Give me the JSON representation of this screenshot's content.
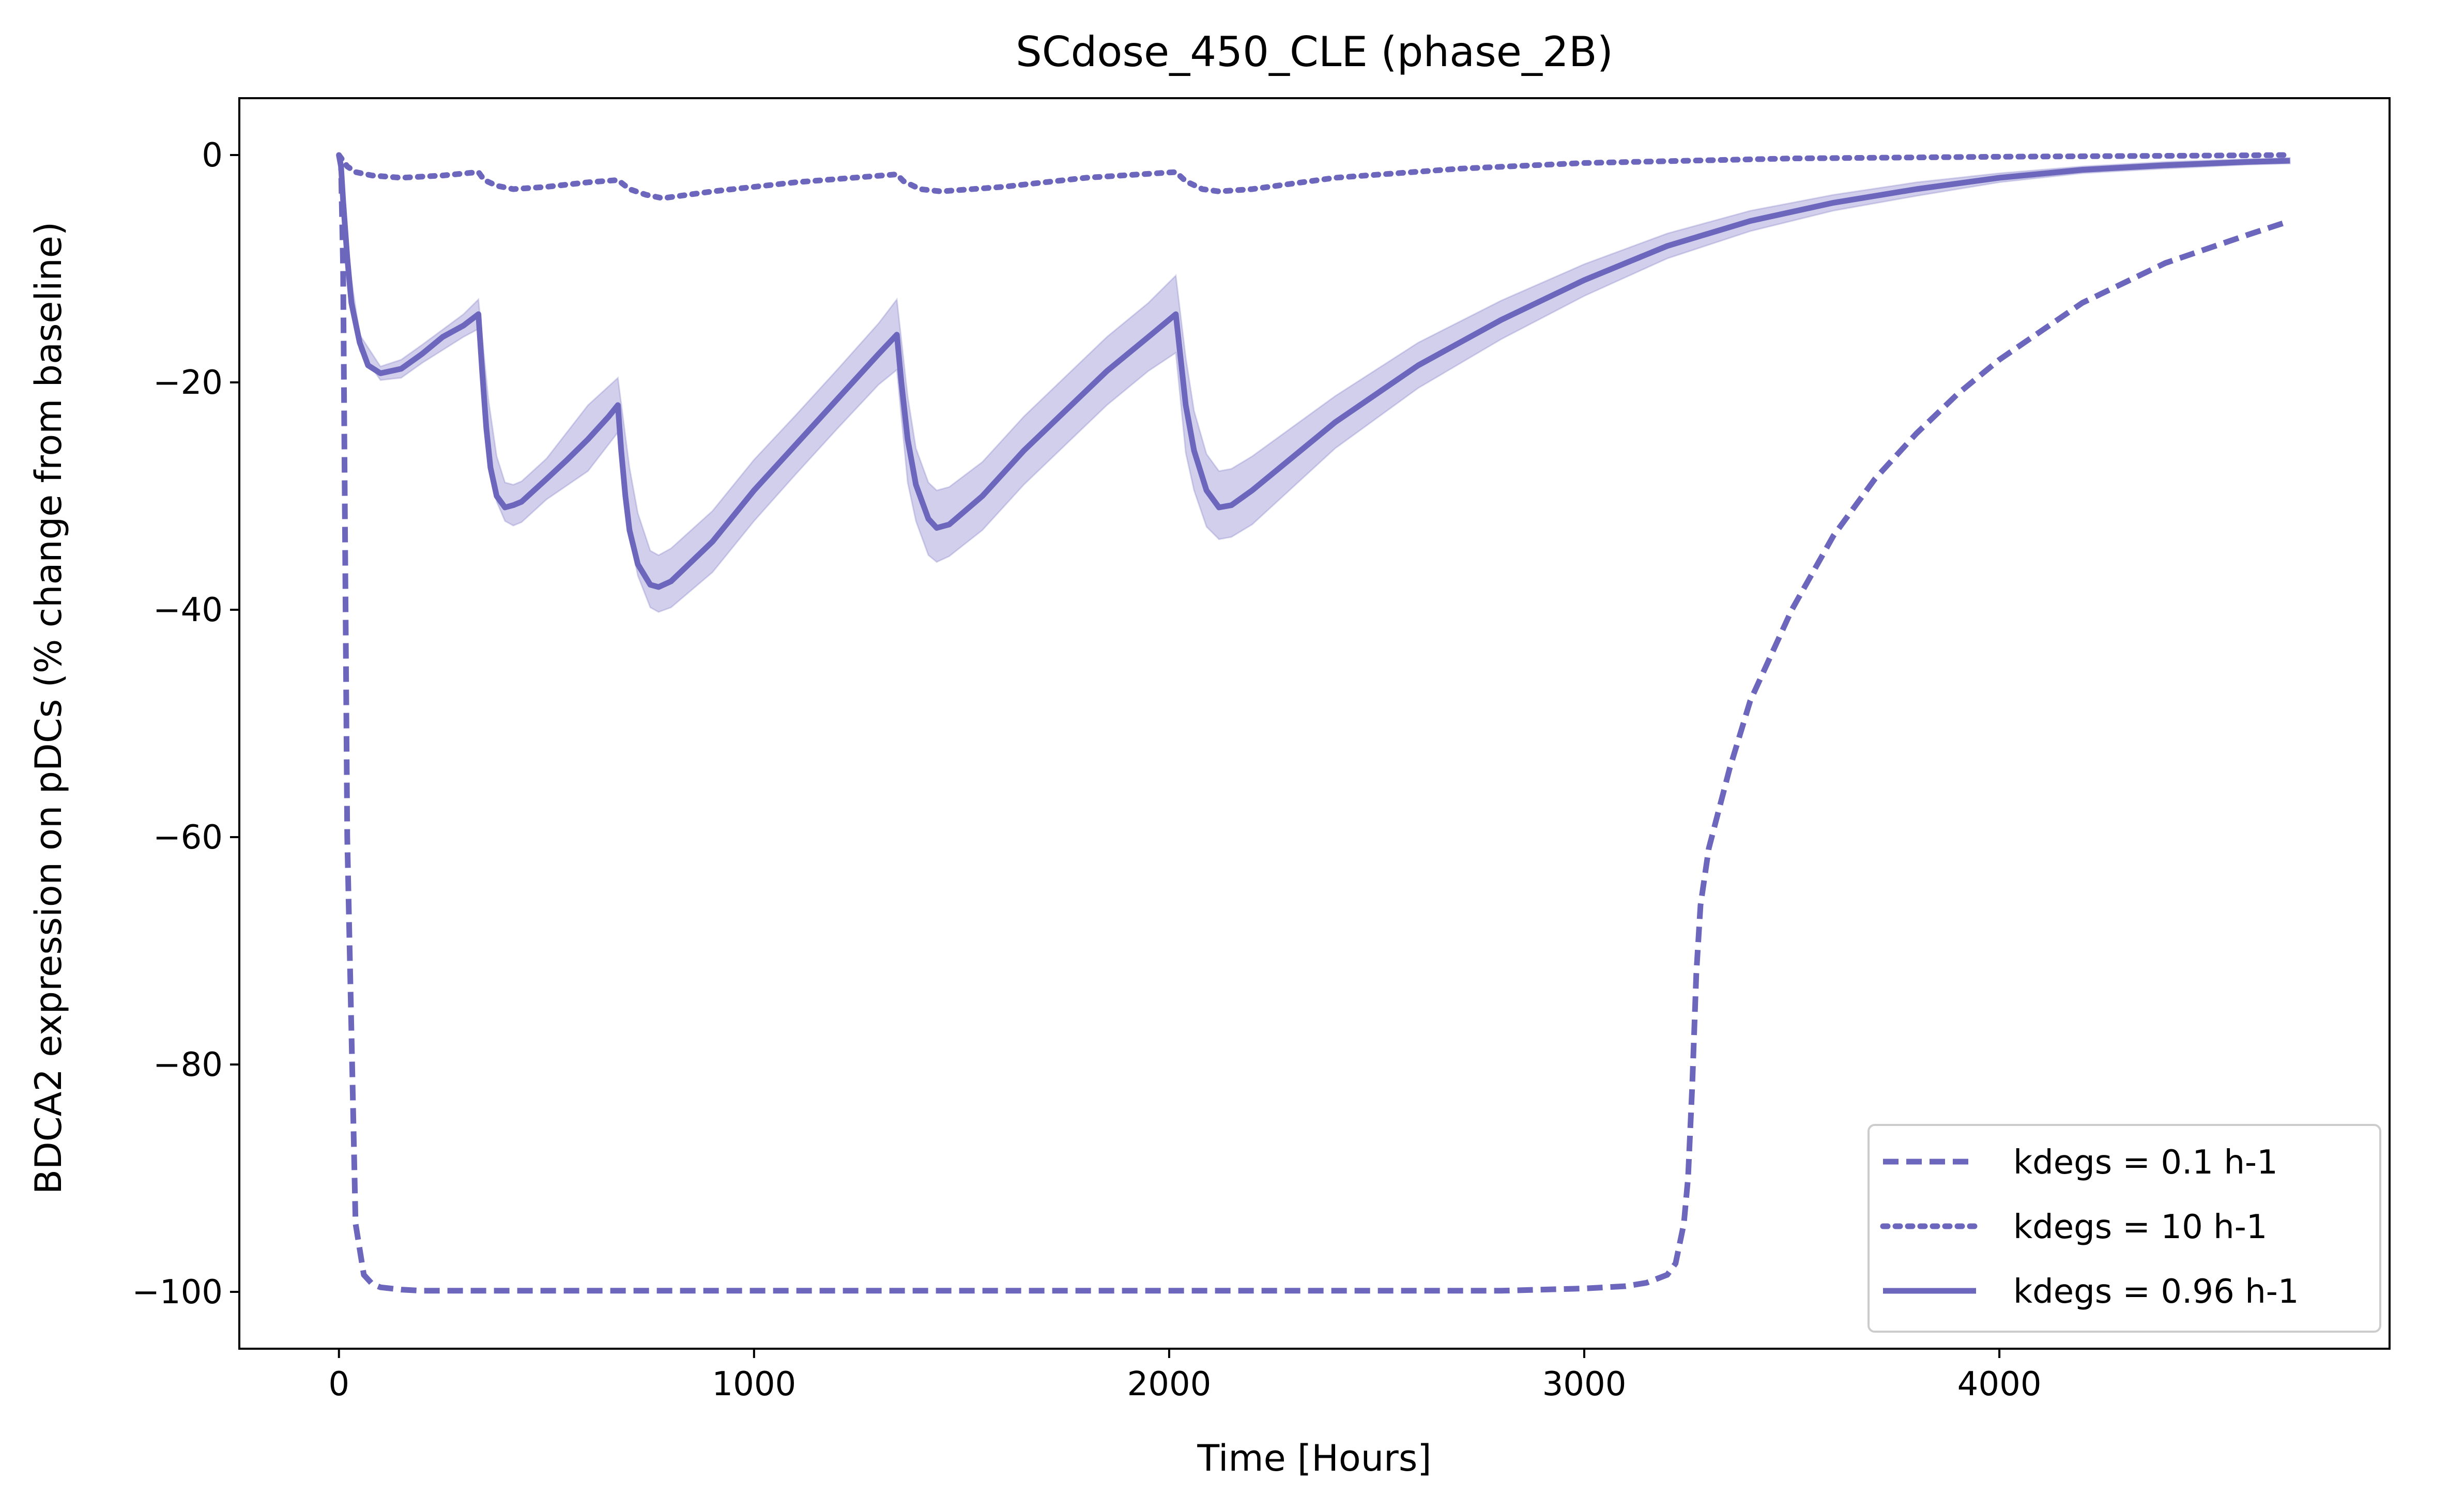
{
  "chart_data": {
    "type": "line",
    "title": "SCdose_450_CLE (phase_2B)",
    "xlabel": "Time [Hours]",
    "ylabel": "BDCA2 expression on pDCs (% change from baseline)",
    "xlim": [
      -240,
      4940
    ],
    "ylim": [
      -105,
      5
    ],
    "xticks": [
      0,
      1000,
      2000,
      3000,
      4000
    ],
    "yticks": [
      0,
      -20,
      -40,
      -60,
      -80,
      -100
    ],
    "xtick_labels": [
      "0",
      "1000",
      "2000",
      "3000",
      "4000"
    ],
    "ytick_labels": [
      "0",
      "−20",
      "−40",
      "−60",
      "−80",
      "−100"
    ],
    "grid": false,
    "legend_position": "lower right",
    "color": "#6c66bd",
    "band_color": "#c9c7e8",
    "series": [
      {
        "name": "kdegs = 0.1 h-1",
        "style": "dashed",
        "x": [
          0,
          5,
          10,
          20,
          40,
          60,
          80,
          100,
          150,
          200,
          300,
          500,
          1000,
          1500,
          2000,
          2500,
          2800,
          3000,
          3100,
          3150,
          3200,
          3220,
          3240,
          3250,
          3260,
          3270,
          3280,
          3300,
          3350,
          3400,
          3500,
          3600,
          3700,
          3800,
          3900,
          4000,
          4200,
          4400,
          4600,
          4700
        ],
        "y": [
          0,
          -1,
          -10,
          -60,
          -94,
          -98.5,
          -99.3,
          -99.6,
          -99.8,
          -99.9,
          -99.9,
          -99.9,
          -99.9,
          -99.9,
          -99.9,
          -99.9,
          -99.9,
          -99.7,
          -99.5,
          -99.2,
          -98.5,
          -97.5,
          -94,
          -90,
          -82,
          -72,
          -66,
          -61,
          -54,
          -48,
          -40,
          -33.5,
          -28.5,
          -24.5,
          -21,
          -18,
          -13,
          -9.5,
          -7,
          -5.8
        ]
      },
      {
        "name": "kdegs = 10 h-1",
        "style": "dotted",
        "x": [
          0,
          20,
          40,
          80,
          150,
          250,
          336,
          350,
          380,
          420,
          500,
          600,
          672,
          700,
          740,
          780,
          900,
          1100,
          1344,
          1360,
          1400,
          1450,
          1600,
          1800,
          2016,
          2040,
          2080,
          2120,
          2200,
          2400,
          2700,
          3000,
          3500,
          4000,
          4500,
          4700
        ],
        "y": [
          0,
          -1,
          -1.5,
          -1.8,
          -2.0,
          -1.8,
          -1.5,
          -2.2,
          -2.7,
          -3.0,
          -2.8,
          -2.4,
          -2.2,
          -3.0,
          -3.5,
          -3.8,
          -3.2,
          -2.4,
          -1.7,
          -2.3,
          -3.0,
          -3.2,
          -2.8,
          -2.0,
          -1.5,
          -2.3,
          -3.0,
          -3.2,
          -3.0,
          -2.0,
          -1.2,
          -0.7,
          -0.3,
          -0.15,
          -0.05,
          0
        ]
      },
      {
        "name": "kdegs = 0.96 h-1",
        "style": "solid",
        "x": [
          0,
          5,
          10,
          20,
          30,
          50,
          70,
          100,
          150,
          200,
          250,
          300,
          336,
          345,
          355,
          365,
          380,
          400,
          420,
          440,
          500,
          550,
          600,
          650,
          672,
          680,
          690,
          700,
          720,
          750,
          770,
          800,
          900,
          1000,
          1100,
          1200,
          1300,
          1344,
          1355,
          1370,
          1390,
          1420,
          1440,
          1470,
          1550,
          1650,
          1750,
          1850,
          1950,
          2016,
          2025,
          2040,
          2060,
          2090,
          2120,
          2150,
          2200,
          2400,
          2600,
          2800,
          3000,
          3200,
          3400,
          3600,
          3800,
          4000,
          4200,
          4400,
          4600,
          4700
        ],
        "y": [
          0,
          -1,
          -4,
          -9,
          -13,
          -16.5,
          -18.5,
          -19.2,
          -18.8,
          -17.5,
          -16,
          -15,
          -14,
          -19,
          -24,
          -27.5,
          -30,
          -31,
          -30.8,
          -30.5,
          -28.5,
          -26.8,
          -25,
          -23,
          -22,
          -26,
          -30,
          -33,
          -36,
          -37.8,
          -38,
          -37.5,
          -34,
          -29.5,
          -25.5,
          -21.5,
          -17.5,
          -15.8,
          -20,
          -25,
          -29,
          -32,
          -32.8,
          -32.5,
          -30,
          -26,
          -22.5,
          -19,
          -16,
          -14,
          -17,
          -22,
          -26,
          -29.5,
          -31,
          -30.8,
          -29.5,
          -23.5,
          -18.5,
          -14.5,
          -11,
          -8,
          -5.8,
          -4.2,
          -3,
          -2,
          -1.3,
          -0.9,
          -0.6,
          -0.5
        ]
      }
    ],
    "uncertainty_band": {
      "series": "kdegs = 0.96 h-1",
      "x": [
        0,
        20,
        50,
        100,
        150,
        200,
        300,
        336,
        360,
        380,
        400,
        420,
        440,
        500,
        600,
        672,
        700,
        720,
        750,
        770,
        800,
        900,
        1000,
        1100,
        1200,
        1300,
        1344,
        1370,
        1390,
        1420,
        1440,
        1470,
        1550,
        1650,
        1750,
        1850,
        1950,
        2016,
        2040,
        2060,
        2090,
        2120,
        2150,
        2200,
        2400,
        2600,
        2800,
        3000,
        3200,
        3400,
        3600,
        3800,
        4000,
        4200,
        4400,
        4600,
        4700
      ],
      "upper": [
        0,
        -8.5,
        -15.8,
        -18.6,
        -18,
        -16.7,
        -14,
        -12.7,
        -21.5,
        -26.5,
        -28.8,
        -29,
        -28.7,
        -26.7,
        -22,
        -19.6,
        -27.5,
        -31.5,
        -34.8,
        -35.2,
        -34.6,
        -31.3,
        -26.8,
        -22.9,
        -18.9,
        -14.8,
        -12.7,
        -21.2,
        -25.8,
        -28.8,
        -29.5,
        -29.2,
        -27,
        -23,
        -19.5,
        -16,
        -13,
        -10.6,
        -17.8,
        -22.5,
        -26.3,
        -27.8,
        -27.6,
        -26.5,
        -21.2,
        -16.5,
        -12.8,
        -9.6,
        -6.9,
        -4.9,
        -3.5,
        -2.4,
        -1.6,
        -1,
        -0.6,
        -0.35,
        -0.25
      ],
      "lower": [
        0,
        -9.5,
        -17.2,
        -19.8,
        -19.6,
        -18.3,
        -16,
        -15.3,
        -26.5,
        -30.5,
        -32.2,
        -32.6,
        -32.3,
        -30.3,
        -27.8,
        -24.4,
        -33.5,
        -37,
        -39.8,
        -40.2,
        -39.8,
        -36.7,
        -32.2,
        -28.1,
        -24.1,
        -20.2,
        -18.9,
        -28.8,
        -32.2,
        -35.2,
        -35.8,
        -35.3,
        -33,
        -29,
        -25.5,
        -22,
        -19,
        -17.4,
        -26.2,
        -29.5,
        -32.7,
        -33.8,
        -33.6,
        -32.5,
        -25.8,
        -20.5,
        -16.2,
        -12.4,
        -9.1,
        -6.7,
        -4.9,
        -3.6,
        -2.4,
        -1.6,
        -1.2,
        -0.85,
        -0.75
      ]
    }
  }
}
